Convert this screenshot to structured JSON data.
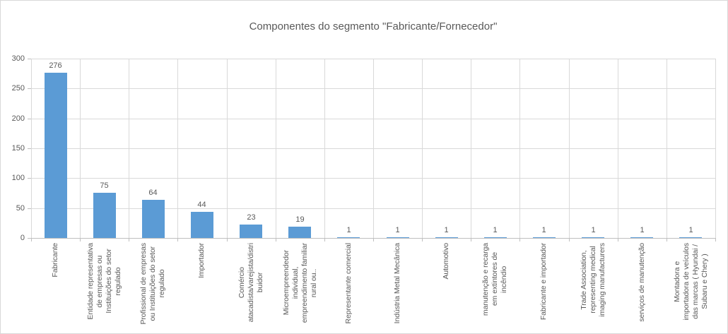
{
  "chart_data": {
    "type": "bar",
    "title": "Componentes do segmento \"Fabricante/Fornecedor\"",
    "categories": [
      "Fabricante",
      "Entidade representativa de empresas ou Instituições do setor regulado",
      "Profissional de empresas ou Instituições do setor regulado",
      "Importador",
      "Comércio atacadista/varejista/distribuidor",
      "Microempreendedor individual, empreendimento familiar rural ou..",
      "Representante comercial",
      "Indústria Metal Mecânica",
      "Automotivo",
      "manutenção e recarga em extintores de incêndio",
      "Fabricante e importador",
      "Trade Association, representing medical imaging manufacturers",
      "serviços de manutenção",
      "Montadora e importadora de veículos das marcas ( Hyundai / Subaru e Chery )"
    ],
    "category_display_lines": [
      [
        "Fabricante"
      ],
      [
        "Entidade representativa",
        "de empresas ou",
        "Instituições do setor",
        "regulado"
      ],
      [
        "Profissional de empresas",
        "ou Instituições do setor",
        "regulado"
      ],
      [
        "Importador"
      ],
      [
        "Comércio",
        "atacadista/varejista/distri",
        "buidor"
      ],
      [
        "Microempreendedor",
        "individual,",
        "empreendimento familiar",
        "rural ou.."
      ],
      [
        "Representante comercial"
      ],
      [
        "Indústria Metal Mecânica"
      ],
      [
        "Automotivo"
      ],
      [
        "manutenção e recarga",
        "em extintores de",
        "incêndio"
      ],
      [
        "Fabricante e importador"
      ],
      [
        "Trade Association,",
        "representing medical",
        "imaging manufacturers"
      ],
      [
        "serviços de manutenção"
      ],
      [
        "Montadora e",
        "importadora de veículos",
        "das marcas ( Hyundai /",
        "Subaru e Chery )"
      ]
    ],
    "values": [
      276,
      75,
      64,
      44,
      23,
      19,
      1,
      1,
      1,
      1,
      1,
      1,
      1,
      1
    ],
    "xlabel": "",
    "ylabel": "",
    "ylim": [
      0,
      300
    ],
    "yticks": [
      0,
      50,
      100,
      150,
      200,
      250,
      300
    ],
    "grid": true,
    "legend_position": "none",
    "bar_color": "#5b9bd5",
    "text_color": "#595959",
    "gridline_color": "#d9d9d9",
    "axis_color": "#bfbfbf"
  }
}
